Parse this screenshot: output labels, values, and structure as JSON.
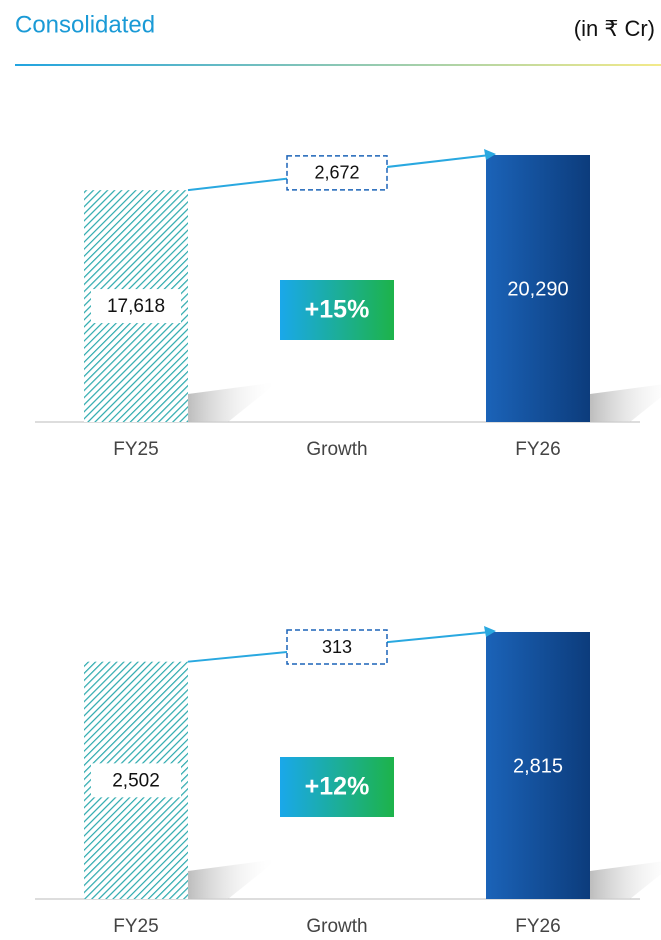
{
  "header": {
    "title": "Consolidated",
    "unit": "(in ₹ Cr)"
  },
  "chart_data": [
    {
      "type": "bridge",
      "categories": [
        "FY25",
        "Growth",
        "FY26"
      ],
      "values": [
        17618,
        2672,
        20290
      ],
      "value_labels": [
        "17,618",
        "2,672",
        "20,290"
      ],
      "annotation": "+15%"
    },
    {
      "type": "bridge",
      "categories": [
        "FY25",
        "Growth",
        "FY26"
      ],
      "values": [
        2502,
        313,
        2815
      ],
      "value_labels": [
        "2,502",
        "313",
        "2,815"
      ],
      "annotation": "+12%"
    }
  ]
}
